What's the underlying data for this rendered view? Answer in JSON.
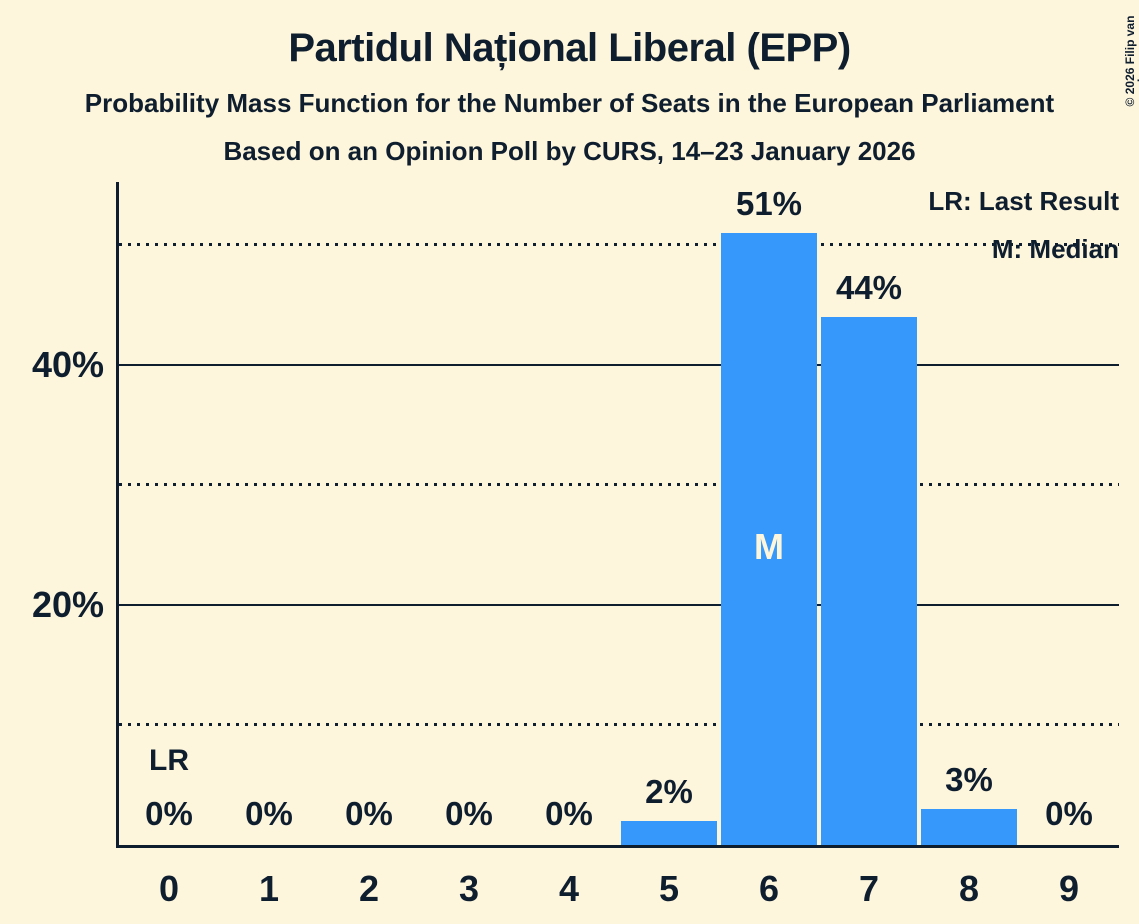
{
  "page": {
    "background": "#fdf5dc",
    "text_color": "#0f1e2e",
    "bar_color": "#3598fa"
  },
  "header": {
    "title": "Partidul Național Liberal (EPP)",
    "subtitle": "Probability Mass Function for the Number of Seats in the European Parliament",
    "source_line": "Based on an Opinion Poll by CURS, 14–23 January 2026"
  },
  "legend": {
    "lr_label": "LR: Last Result",
    "m_label": "M: Median"
  },
  "copyright_notice": "© 2026 Filip van Laenen",
  "chart_data": {
    "type": "bar",
    "title": "Partidul Național Liberal (EPP)",
    "subtitle": "Probability Mass Function for the Number of Seats in the European Parliament",
    "source_line": "Based on an Opinion Poll by CURS, 14–23 January 2026",
    "categories": [
      "0",
      "1",
      "2",
      "3",
      "4",
      "5",
      "6",
      "7",
      "8",
      "9"
    ],
    "values": [
      0,
      0,
      0,
      0,
      0,
      2,
      51,
      44,
      3,
      0
    ],
    "bar_labels": [
      "0%",
      "0%",
      "0%",
      "0%",
      "0%",
      "2%",
      "51%",
      "44%",
      "3%",
      "0%"
    ],
    "xlabel": "",
    "ylabel": "",
    "ylim": [
      0,
      55
    ],
    "y_ticks": [
      {
        "value": 20,
        "label": "20%"
      },
      {
        "value": 40,
        "label": "40%"
      }
    ],
    "solid_gridlines_percent": [
      20,
      40
    ],
    "dotted_gridlines_percent": [
      10,
      30,
      50
    ],
    "grid": "horizontal",
    "legend_entries": [
      "LR: Last Result",
      "M: Median"
    ],
    "legend_position": "top-right",
    "annotations": {
      "last_result": {
        "seat": "0",
        "label": "LR"
      },
      "median": {
        "seat": "6",
        "label": "M"
      }
    },
    "bar_color": "#3598fa"
  }
}
